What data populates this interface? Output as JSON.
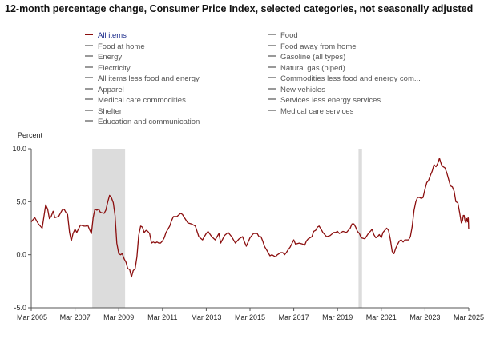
{
  "title": "12-month percentage change, Consumer Price Index, selected categories, not seasonally adjusted",
  "legend": {
    "left": [
      {
        "label": "All items",
        "active": true
      },
      {
        "label": "Food at home",
        "active": false
      },
      {
        "label": "Energy",
        "active": false
      },
      {
        "label": "Electricity",
        "active": false
      },
      {
        "label": "All items less food and energy",
        "active": false
      },
      {
        "label": "Apparel",
        "active": false
      },
      {
        "label": "Medical care commodities",
        "active": false
      },
      {
        "label": "Shelter",
        "active": false
      },
      {
        "label": "Education and communication",
        "active": false
      }
    ],
    "right": [
      {
        "label": "Food",
        "active": false
      },
      {
        "label": "Food away from home",
        "active": false
      },
      {
        "label": "Gasoline (all types)",
        "active": false
      },
      {
        "label": "Natural gas (piped)",
        "active": false
      },
      {
        "label": "Commodities less food and energy com...",
        "active": false
      },
      {
        "label": "New vehicles",
        "active": false
      },
      {
        "label": "Services less energy services",
        "active": false
      },
      {
        "label": "Medical care services",
        "active": false
      }
    ]
  },
  "colors": {
    "series": "#8b0e0e",
    "recession": "#dcdcdc",
    "axis": "#555555",
    "active_legend_text": "#1a2a8a"
  },
  "chart_data": {
    "type": "line",
    "ylabel": "Percent",
    "ylim": [
      -5.0,
      10.0
    ],
    "xlim": [
      2005.17,
      2025.17
    ],
    "y_ticks": [
      {
        "value": 10.0,
        "label": "10.0"
      },
      {
        "value": 5.0,
        "label": "5.0"
      },
      {
        "value": 0.0,
        "label": "0.0"
      },
      {
        "value": -5.0,
        "label": "-5.0"
      }
    ],
    "x_ticks": [
      {
        "value": 2005.17,
        "label": "Mar 2005"
      },
      {
        "value": 2007.17,
        "label": "Mar 2007"
      },
      {
        "value": 2009.17,
        "label": "Mar 2009"
      },
      {
        "value": 2011.17,
        "label": "Mar 2011"
      },
      {
        "value": 2013.17,
        "label": "Mar 2013"
      },
      {
        "value": 2015.17,
        "label": "Mar 2015"
      },
      {
        "value": 2017.17,
        "label": "Mar 2017"
      },
      {
        "value": 2019.17,
        "label": "Mar 2019"
      },
      {
        "value": 2021.17,
        "label": "Mar 2021"
      },
      {
        "value": 2023.17,
        "label": "Mar 2023"
      },
      {
        "value": 2025.17,
        "label": "Mar 2025"
      }
    ],
    "recessions": [
      [
        2007.96,
        2009.46
      ],
      [
        2020.13,
        2020.29
      ]
    ],
    "series": [
      {
        "name": "All items",
        "points": [
          [
            2005.17,
            3.1
          ],
          [
            2005.33,
            3.5
          ],
          [
            2005.5,
            2.9
          ],
          [
            2005.67,
            2.5
          ],
          [
            2005.75,
            3.6
          ],
          [
            2005.83,
            4.7
          ],
          [
            2005.92,
            4.3
          ],
          [
            2006.0,
            3.4
          ],
          [
            2006.08,
            3.6
          ],
          [
            2006.17,
            4.1
          ],
          [
            2006.25,
            3.5
          ],
          [
            2006.42,
            3.6
          ],
          [
            2006.58,
            4.2
          ],
          [
            2006.67,
            4.3
          ],
          [
            2006.75,
            4.0
          ],
          [
            2006.83,
            3.8
          ],
          [
            2006.92,
            2.1
          ],
          [
            2007.0,
            1.3
          ],
          [
            2007.08,
            2.0
          ],
          [
            2007.17,
            2.4
          ],
          [
            2007.25,
            2.1
          ],
          [
            2007.42,
            2.8
          ],
          [
            2007.58,
            2.7
          ],
          [
            2007.67,
            2.7
          ],
          [
            2007.75,
            2.8
          ],
          [
            2007.83,
            2.4
          ],
          [
            2007.92,
            2.0
          ],
          [
            2008.0,
            3.5
          ],
          [
            2008.08,
            4.3
          ],
          [
            2008.17,
            4.2
          ],
          [
            2008.25,
            4.3
          ],
          [
            2008.33,
            4.0
          ],
          [
            2008.5,
            3.9
          ],
          [
            2008.58,
            4.2
          ],
          [
            2008.67,
            5.0
          ],
          [
            2008.75,
            5.6
          ],
          [
            2008.83,
            5.4
          ],
          [
            2008.92,
            4.9
          ],
          [
            2009.0,
            3.7
          ],
          [
            2009.08,
            1.1
          ],
          [
            2009.17,
            0.1
          ],
          [
            2009.25,
            0.0
          ],
          [
            2009.33,
            0.1
          ],
          [
            2009.42,
            -0.4
          ],
          [
            2009.5,
            -0.7
          ],
          [
            2009.58,
            -1.3
          ],
          [
            2009.67,
            -1.4
          ],
          [
            2009.75,
            -2.1
          ],
          [
            2009.83,
            -1.5
          ],
          [
            2009.92,
            -1.3
          ],
          [
            2010.0,
            -0.2
          ],
          [
            2010.08,
            1.8
          ],
          [
            2010.17,
            2.7
          ],
          [
            2010.25,
            2.6
          ],
          [
            2010.33,
            2.1
          ],
          [
            2010.42,
            2.3
          ],
          [
            2010.5,
            2.2
          ],
          [
            2010.58,
            2.0
          ],
          [
            2010.67,
            1.1
          ],
          [
            2010.75,
            1.2
          ],
          [
            2010.83,
            1.1
          ],
          [
            2010.92,
            1.2
          ],
          [
            2011.0,
            1.1
          ],
          [
            2011.08,
            1.1
          ],
          [
            2011.17,
            1.3
          ],
          [
            2011.25,
            1.6
          ],
          [
            2011.33,
            2.1
          ],
          [
            2011.5,
            2.7
          ],
          [
            2011.58,
            3.2
          ],
          [
            2011.67,
            3.6
          ],
          [
            2011.83,
            3.6
          ],
          [
            2012.0,
            3.9
          ],
          [
            2012.08,
            3.8
          ],
          [
            2012.17,
            3.5
          ],
          [
            2012.33,
            3.0
          ],
          [
            2012.5,
            2.9
          ],
          [
            2012.67,
            2.7
          ],
          [
            2012.83,
            1.7
          ],
          [
            2013.0,
            1.4
          ],
          [
            2013.08,
            1.7
          ],
          [
            2013.17,
            2.0
          ],
          [
            2013.25,
            2.2
          ],
          [
            2013.42,
            1.7
          ],
          [
            2013.58,
            1.4
          ],
          [
            2013.75,
            2.0
          ],
          [
            2013.83,
            1.1
          ],
          [
            2014.0,
            1.8
          ],
          [
            2014.17,
            2.1
          ],
          [
            2014.33,
            1.7
          ],
          [
            2014.5,
            1.1
          ],
          [
            2014.67,
            1.5
          ],
          [
            2014.83,
            1.7
          ],
          [
            2014.92,
            1.2
          ],
          [
            2015.0,
            0.8
          ],
          [
            2015.17,
            1.6
          ],
          [
            2015.33,
            2.0
          ],
          [
            2015.5,
            2.0
          ],
          [
            2015.58,
            1.7
          ],
          [
            2015.67,
            1.7
          ],
          [
            2015.75,
            1.3
          ],
          [
            2015.83,
            0.8
          ],
          [
            2016.0,
            0.2
          ],
          [
            2016.08,
            -0.1
          ],
          [
            2016.17,
            0.0
          ],
          [
            2016.25,
            -0.1
          ],
          [
            2016.33,
            -0.2
          ],
          [
            2016.42,
            0.0
          ],
          [
            2016.5,
            0.1
          ],
          [
            2016.58,
            0.2
          ],
          [
            2016.67,
            0.2
          ],
          [
            2016.75,
            0.0
          ],
          [
            2016.83,
            0.2
          ],
          [
            2016.92,
            0.5
          ],
          [
            2017.0,
            0.7
          ],
          [
            2017.17,
            1.4
          ],
          [
            2017.25,
            1.0
          ],
          [
            2017.42,
            1.1
          ],
          [
            2017.58,
            1.0
          ],
          [
            2017.67,
            0.9
          ],
          [
            2017.75,
            1.3
          ],
          [
            2017.83,
            1.5
          ],
          [
            2018.0,
            1.7
          ],
          [
            2018.08,
            2.2
          ],
          [
            2018.17,
            2.3
          ],
          [
            2018.25,
            2.6
          ],
          [
            2018.33,
            2.7
          ],
          [
            2018.42,
            2.4
          ],
          [
            2018.5,
            2.1
          ],
          [
            2018.67,
            1.7
          ],
          [
            2018.83,
            1.8
          ],
          [
            2019.0,
            2.1
          ],
          [
            2019.08,
            2.1
          ],
          [
            2019.17,
            2.2
          ],
          [
            2019.25,
            2.0
          ],
          [
            2019.42,
            2.2
          ],
          [
            2019.58,
            2.1
          ],
          [
            2019.75,
            2.5
          ],
          [
            2019.83,
            2.9
          ],
          [
            2019.92,
            2.9
          ],
          [
            2020.0,
            2.6
          ],
          [
            2020.08,
            2.2
          ],
          [
            2020.17,
            2.0
          ],
          [
            2020.25,
            1.6
          ],
          [
            2020.42,
            1.5
          ],
          [
            2020.58,
            2.0
          ],
          [
            2020.67,
            2.2
          ],
          [
            2020.75,
            2.4
          ],
          [
            2020.83,
            1.9
          ],
          [
            2020.92,
            1.6
          ],
          [
            2021.0,
            1.7
          ],
          [
            2021.08,
            1.9
          ],
          [
            2021.17,
            1.6
          ],
          [
            2021.25,
            2.1
          ],
          [
            2021.33,
            2.3
          ],
          [
            2021.42,
            2.5
          ],
          [
            2021.5,
            2.3
          ],
          [
            2021.58,
            1.5
          ],
          [
            2021.67,
            0.3
          ],
          [
            2021.75,
            0.1
          ],
          [
            2021.83,
            0.6
          ],
          [
            2021.92,
            1.0
          ],
          [
            2022.0,
            1.3
          ],
          [
            2022.08,
            1.4
          ],
          [
            2022.17,
            1.2
          ],
          [
            2022.25,
            1.4
          ],
          [
            2022.42,
            1.4
          ],
          [
            2022.5,
            1.7
          ],
          [
            2022.58,
            2.6
          ],
          [
            2022.67,
            4.2
          ],
          [
            2022.75,
            5.0
          ],
          [
            2022.83,
            5.4
          ],
          [
            2022.92,
            5.4
          ],
          [
            2023.0,
            5.3
          ],
          [
            2023.08,
            5.4
          ],
          [
            2023.17,
            6.2
          ],
          [
            2023.25,
            6.8
          ],
          [
            2023.33,
            7.0
          ],
          [
            2023.42,
            7.5
          ],
          [
            2023.5,
            7.9
          ],
          [
            2023.58,
            8.5
          ],
          [
            2023.67,
            8.3
          ],
          [
            2023.75,
            8.6
          ],
          [
            2023.83,
            9.1
          ],
          [
            2023.92,
            8.5
          ],
          [
            2024.0,
            8.3
          ],
          [
            2024.08,
            8.2
          ],
          [
            2024.17,
            7.7
          ],
          [
            2024.25,
            7.1
          ],
          [
            2024.33,
            6.5
          ],
          [
            2024.42,
            6.4
          ],
          [
            2024.5,
            6.0
          ],
          [
            2024.58,
            5.0
          ],
          [
            2024.67,
            4.9
          ],
          [
            2024.75,
            4.0
          ],
          [
            2024.83,
            3.0
          ],
          [
            2024.88,
            3.2
          ],
          [
            2024.92,
            3.7
          ],
          [
            2024.96,
            3.7
          ],
          [
            2025.0,
            3.2
          ],
          [
            2025.04,
            3.0
          ],
          [
            2025.08,
            3.4
          ],
          [
            2025.1,
            3.3
          ],
          [
            2025.12,
            3.1
          ],
          [
            2025.13,
            3.2
          ],
          [
            2025.14,
            3.5
          ],
          [
            2025.15,
            3.4
          ],
          [
            2025.155,
            3.1
          ],
          [
            2025.16,
            2.9
          ],
          [
            2025.163,
            2.6
          ],
          [
            2025.166,
            2.5
          ],
          [
            2025.17,
            2.4
          ]
        ]
      }
    ]
  }
}
